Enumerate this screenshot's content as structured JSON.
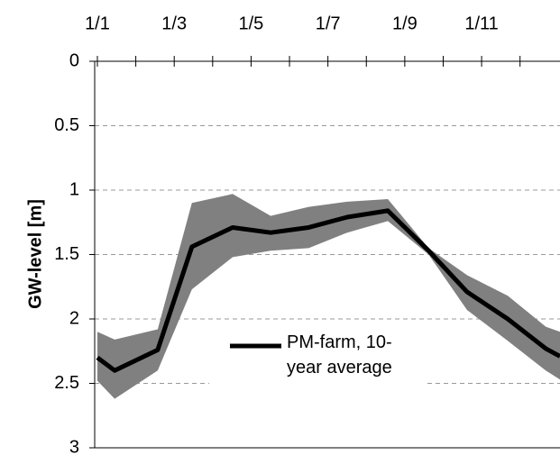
{
  "chart_data": {
    "type": "line",
    "ylabel": "GW-level [m]",
    "x": [
      0,
      0.45,
      1.57,
      2.46,
      3.52,
      4.51,
      5.5,
      6.5,
      7.56,
      8.62,
      9.62,
      10.68,
      11.67,
      12.04
    ],
    "series": [
      {
        "name": "PM-farm, 10-year average",
        "color": "#000000",
        "values": [
          2.3,
          2.4,
          2.24,
          1.44,
          1.29,
          1.33,
          1.29,
          1.21,
          1.16,
          1.47,
          1.79,
          2.0,
          2.23,
          2.29
        ]
      }
    ],
    "band": {
      "color": "#808080",
      "lower": [
        2.1,
        2.16,
        2.08,
        1.1,
        1.03,
        1.2,
        1.13,
        1.09,
        1.07,
        1.45,
        1.66,
        1.82,
        2.06,
        2.1
      ],
      "upper": [
        2.48,
        2.62,
        2.4,
        1.77,
        1.52,
        1.47,
        1.45,
        1.33,
        1.24,
        1.5,
        1.93,
        2.17,
        2.4,
        2.47
      ]
    },
    "xlim": [
      -0.07,
      12.04
    ],
    "xticks": [
      {
        "value": 0,
        "label": "1/1"
      },
      {
        "value": 2,
        "label": "1/3"
      },
      {
        "value": 4,
        "label": "1/5"
      },
      {
        "value": 6,
        "label": "1/7"
      },
      {
        "value": 8,
        "label": "1/9"
      },
      {
        "value": 10,
        "label": "1/11"
      }
    ],
    "minor_xticks": [
      1,
      3,
      5,
      7,
      9,
      11
    ],
    "ylim": [
      0,
      3
    ],
    "yticks": [
      0,
      0.5,
      1,
      1.5,
      2,
      2.5,
      3
    ],
    "y_inverted": true,
    "grid": true
  }
}
